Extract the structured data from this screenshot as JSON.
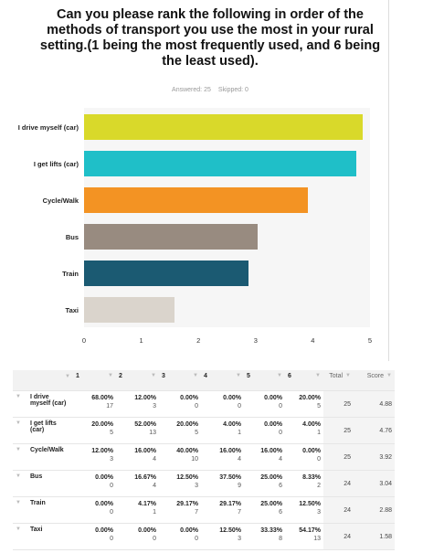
{
  "chart_data": {
    "type": "bar",
    "orientation": "horizontal",
    "title": "Can you please rank the following in order of the methods of transport you use the most in your rural setting.(1 being the most frequently used, and 6 being the least used).",
    "answered": "Answered: 25",
    "skipped": "Skipped: 0",
    "categories": [
      "I drive myself (car)",
      "I get lifts (car)",
      "Cycle/Walk",
      "Bus",
      "Train",
      "Taxi"
    ],
    "values": [
      4.88,
      4.76,
      3.92,
      3.04,
      2.88,
      1.58
    ],
    "colors": [
      "#d9d92a",
      "#1fbfc8",
      "#f39323",
      "#988b80",
      "#1b5a72",
      "#dad4cc"
    ],
    "xlim": [
      0,
      5
    ],
    "xticks": [
      0,
      1,
      2,
      3,
      4,
      5
    ]
  },
  "table": {
    "columns": [
      "1",
      "2",
      "3",
      "4",
      "5",
      "6",
      "Total",
      "Score"
    ],
    "rows": [
      {
        "cells": [
          {
            "percent": "68.00%",
            "count": 17
          },
          {
            "percent": "12.00%",
            "count": 3
          },
          {
            "percent": "0.00%",
            "count": 0
          },
          {
            "percent": "0.00%",
            "count": 0
          },
          {
            "percent": "0.00%",
            "count": 0
          },
          {
            "percent": "20.00%",
            "count": 5
          }
        ],
        "total": 25
      },
      {
        "cells": [
          {
            "percent": "20.00%",
            "count": 5
          },
          {
            "percent": "52.00%",
            "count": 13
          },
          {
            "percent": "20.00%",
            "count": 5
          },
          {
            "percent": "4.00%",
            "count": 1
          },
          {
            "percent": "0.00%",
            "count": 0
          },
          {
            "percent": "4.00%",
            "count": 1
          }
        ],
        "total": 25
      },
      {
        "cells": [
          {
            "percent": "12.00%",
            "count": 3
          },
          {
            "percent": "16.00%",
            "count": 4
          },
          {
            "percent": "40.00%",
            "count": 10
          },
          {
            "percent": "16.00%",
            "count": 4
          },
          {
            "percent": "16.00%",
            "count": 4
          },
          {
            "percent": "0.00%",
            "count": 0
          }
        ],
        "total": 25
      },
      {
        "cells": [
          {
            "percent": "0.00%",
            "count": 0
          },
          {
            "percent": "16.67%",
            "count": 4
          },
          {
            "percent": "12.50%",
            "count": 3
          },
          {
            "percent": "37.50%",
            "count": 9
          },
          {
            "percent": "25.00%",
            "count": 6
          },
          {
            "percent": "8.33%",
            "count": 2
          }
        ],
        "total": 24
      },
      {
        "cells": [
          {
            "percent": "0.00%",
            "count": 0
          },
          {
            "percent": "4.17%",
            "count": 1
          },
          {
            "percent": "29.17%",
            "count": 7
          },
          {
            "percent": "29.17%",
            "count": 7
          },
          {
            "percent": "25.00%",
            "count": 6
          },
          {
            "percent": "12.50%",
            "count": 3
          }
        ],
        "total": 24
      },
      {
        "cells": [
          {
            "percent": "0.00%",
            "count": 0
          },
          {
            "percent": "0.00%",
            "count": 0
          },
          {
            "percent": "0.00%",
            "count": 0
          },
          {
            "percent": "12.50%",
            "count": 3
          },
          {
            "percent": "33.33%",
            "count": 8
          },
          {
            "percent": "54.17%",
            "count": 13
          }
        ],
        "total": 24
      }
    ]
  }
}
